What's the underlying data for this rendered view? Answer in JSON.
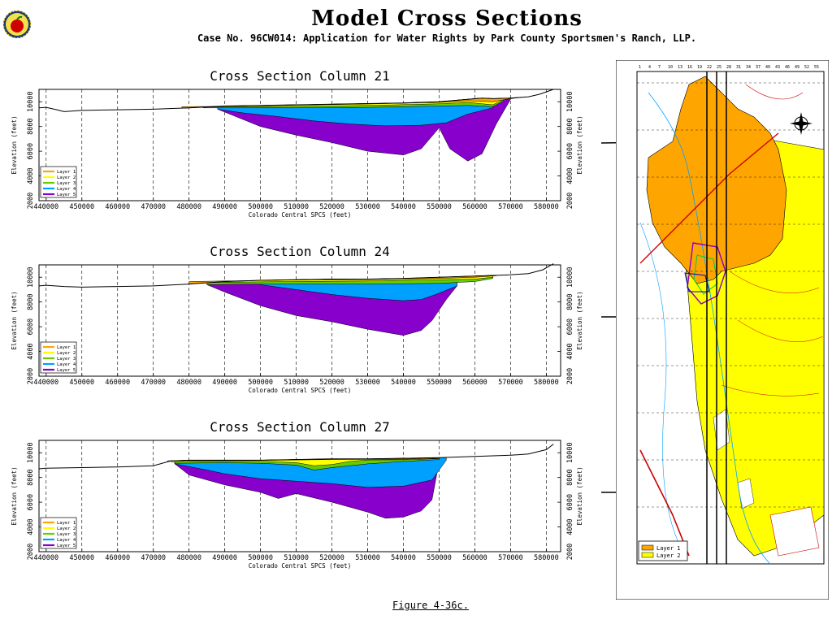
{
  "header": {
    "title": "Model Cross Sections",
    "subtitle": "Case No. 96CW014: Application for Water Rights by Park County Sportsmen's Ranch, LLP."
  },
  "footer": {
    "caption": "Figure 4-36c."
  },
  "colors": {
    "layer1": "#ffa500",
    "layer2": "#ffff00",
    "layer3": "#66cc00",
    "layer4": "#00a0ff",
    "layer5": "#8800cc"
  },
  "chart_data": [
    {
      "type": "area",
      "title": "Cross Section Column 21",
      "xlabel": "Colorado Central SPCS (feet)",
      "ylabel": "Elevation (feet)",
      "xlim": [
        438000,
        584000
      ],
      "ylim": [
        2000,
        11000
      ],
      "x_ticks": [
        440000,
        450000,
        460000,
        470000,
        480000,
        490000,
        500000,
        510000,
        520000,
        530000,
        540000,
        550000,
        560000,
        570000,
        580000
      ],
      "y_ticks": [
        2000,
        4000,
        6000,
        8000,
        10000
      ],
      "legend": [
        "Layer 1",
        "Layer 2",
        "Layer 3",
        "Layer 4",
        "Layer 5"
      ],
      "legend_position": "bottom-left",
      "grid": "vertical-dashed",
      "surface": {
        "x": [
          438000,
          440000,
          443000,
          445000,
          450000,
          460000,
          470000,
          480000,
          490000,
          500000,
          510000,
          520000,
          530000,
          540000,
          550000,
          558000,
          562000,
          565000,
          570000,
          575000,
          578000,
          582000
        ],
        "y": [
          9500,
          9550,
          9350,
          9200,
          9300,
          9350,
          9400,
          9500,
          9650,
          9700,
          9750,
          9800,
          9850,
          9900,
          10000,
          10200,
          10300,
          10250,
          10300,
          10400,
          10600,
          11000
        ]
      },
      "bottoms": [
        {
          "x": [
            478000,
            490000,
            510000,
            530000,
            550000,
            558000,
            565000,
            570000,
            573000
          ],
          "y": [
            9600,
            9630,
            9720,
            9820,
            9950,
            10080,
            10000,
            10250,
            10350
          ]
        },
        {
          "x": [
            481000,
            490000,
            510000,
            530000,
            550000,
            558000,
            565000,
            568000,
            571000
          ],
          "y": [
            9550,
            9580,
            9620,
            9700,
            9830,
            9950,
            9750,
            10150,
            10300
          ]
        },
        {
          "x": [
            484000,
            490000,
            510000,
            530000,
            550000,
            558000,
            565000,
            568000
          ],
          "y": [
            9500,
            9500,
            9500,
            9550,
            9650,
            9700,
            9600,
            10050
          ]
        },
        {
          "x": [
            488000,
            495000,
            505000,
            515000,
            525000,
            535000,
            545000,
            552000,
            558000,
            565000
          ],
          "y": [
            9400,
            9100,
            8800,
            8450,
            8200,
            8050,
            8100,
            8300,
            9000,
            9500
          ]
        },
        {
          "x": [
            488000,
            500000,
            510000,
            520000,
            530000,
            540000,
            545000,
            550000,
            553000,
            558000,
            562000,
            566000,
            570000
          ],
          "y": [
            9400,
            8000,
            7300,
            6700,
            6000,
            5700,
            6200,
            7900,
            6200,
            5200,
            5800,
            8200,
            10200
          ]
        }
      ]
    },
    {
      "type": "area",
      "title": "Cross Section Column 24",
      "xlabel": "Colorado Central SPCS (feet)",
      "ylabel": "Elevation (feet)",
      "xlim": [
        438000,
        584000
      ],
      "ylim": [
        2000,
        11000
      ],
      "x_ticks": [
        440000,
        450000,
        460000,
        470000,
        480000,
        490000,
        500000,
        510000,
        520000,
        530000,
        540000,
        550000,
        560000,
        570000,
        580000
      ],
      "y_ticks": [
        2000,
        4000,
        6000,
        8000,
        10000
      ],
      "legend": [
        "Layer 1",
        "Layer 2",
        "Layer 3",
        "Layer 4",
        "Layer 5"
      ],
      "legend_position": "bottom-left",
      "grid": "vertical-dashed",
      "surface": {
        "x": [
          438000,
          440000,
          445000,
          450000,
          460000,
          470000,
          480000,
          490000,
          500000,
          510000,
          520000,
          530000,
          540000,
          550000,
          560000,
          570000,
          575000,
          579000,
          582000
        ],
        "y": [
          9300,
          9350,
          9250,
          9200,
          9250,
          9300,
          9450,
          9650,
          9750,
          9800,
          9850,
          9850,
          9900,
          10000,
          10100,
          10200,
          10300,
          10600,
          11100
        ]
      },
      "bottoms": [
        {
          "x": [
            480000,
            490000,
            510000,
            530000,
            550000,
            560000,
            566000
          ],
          "y": [
            9650,
            9700,
            9780,
            9820,
            9900,
            10000,
            10120
          ]
        },
        {
          "x": [
            482000,
            490000,
            510000,
            530000,
            550000,
            560000,
            565000
          ],
          "y": [
            9550,
            9600,
            9650,
            9700,
            9800,
            9850,
            10000
          ]
        },
        {
          "x": [
            485000,
            495000,
            510000,
            530000,
            550000,
            560000,
            565000
          ],
          "y": [
            9400,
            9450,
            9450,
            9450,
            9500,
            9650,
            9900
          ]
        },
        {
          "x": [
            500000,
            510000,
            520000,
            530000,
            540000,
            545000,
            549000,
            555000
          ],
          "y": [
            9400,
            9000,
            8600,
            8300,
            8100,
            8200,
            8600,
            9300
          ]
        },
        {
          "x": [
            485000,
            490000,
            500000,
            510000,
            520000,
            530000,
            540000,
            545000,
            548000,
            552000,
            555000
          ],
          "y": [
            9400,
            8800,
            7700,
            6900,
            6400,
            5800,
            5300,
            5700,
            6500,
            8200,
            9300
          ]
        }
      ]
    },
    {
      "type": "area",
      "title": "Cross Section Column 27",
      "xlabel": "Colorado Central SPCS (feet)",
      "ylabel": "Elevation (feet)",
      "xlim": [
        438000,
        584000
      ],
      "ylim": [
        2000,
        11000
      ],
      "x_ticks": [
        440000,
        450000,
        460000,
        470000,
        480000,
        490000,
        500000,
        510000,
        520000,
        530000,
        540000,
        550000,
        560000,
        570000,
        580000
      ],
      "y_ticks": [
        2000,
        4000,
        6000,
        8000,
        10000
      ],
      "legend": [
        "Layer 1",
        "Layer 2",
        "Layer 3",
        "Layer 4",
        "Layer 5"
      ],
      "legend_position": "bottom-left",
      "grid": "vertical-dashed",
      "surface": {
        "x": [
          438000,
          440000,
          450000,
          460000,
          470000,
          475000,
          480000,
          490000,
          500000,
          510000,
          520000,
          530000,
          540000,
          550000,
          560000,
          570000,
          575000,
          580000,
          582000
        ],
        "y": [
          8700,
          8750,
          8800,
          8850,
          8950,
          9350,
          9400,
          9400,
          9400,
          9450,
          9500,
          9500,
          9550,
          9600,
          9700,
          9800,
          9900,
          10250,
          10700
        ]
      },
      "bottoms": [
        {
          "x": [
            474000,
            480000,
            490000,
            500000,
            510000,
            520000,
            530000,
            540000,
            550000
          ],
          "y": [
            9350,
            9380,
            9380,
            9380,
            9420,
            9450,
            9460,
            9480,
            9550
          ]
        },
        {
          "x": [
            475000,
            480000,
            490000,
            500000,
            510000,
            515000,
            520000,
            525000,
            530000,
            540000,
            550000
          ],
          "y": [
            9250,
            9330,
            9330,
            9300,
            9200,
            8950,
            9050,
            9300,
            9420,
            9430,
            9520
          ]
        },
        {
          "x": [
            476000,
            490000,
            500000,
            510000,
            515000,
            520000,
            530000,
            540000,
            550000
          ],
          "y": [
            9150,
            9200,
            9150,
            9000,
            8600,
            8800,
            9100,
            9300,
            9450
          ]
        },
        {
          "x": [
            476000,
            485000,
            490000,
            500000,
            510000,
            520000,
            530000,
            540000,
            548000,
            552000
          ],
          "y": [
            9100,
            8600,
            8300,
            7900,
            7700,
            7500,
            7200,
            7300,
            7800,
            9400
          ]
        },
        {
          "x": [
            476000,
            480000,
            490000,
            500000,
            505000,
            510000,
            520000,
            530000,
            535000,
            540000,
            545000,
            548000,
            550000
          ],
          "y": [
            9100,
            8200,
            7400,
            6800,
            6300,
            6700,
            6000,
            5200,
            4700,
            4800,
            5300,
            6200,
            9300
          ]
        }
      ]
    }
  ]
}
